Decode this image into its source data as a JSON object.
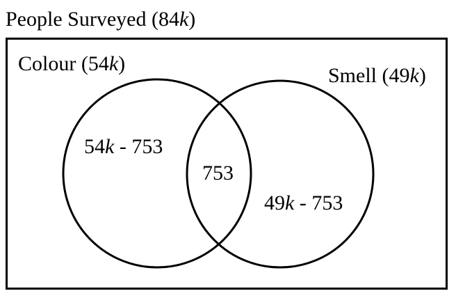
{
  "title": {
    "prefix": "People Surveyed (84",
    "var": "k",
    "suffix": ")"
  },
  "sets": {
    "a": {
      "prefix": "Colour (54",
      "var": "k",
      "suffix": ")"
    },
    "b": {
      "prefix": "Smell (49",
      "var": "k",
      "suffix": ")"
    }
  },
  "regions": {
    "only_a": {
      "prefix": "54",
      "var": "k",
      "suffix": " - 753"
    },
    "both": "753",
    "only_b": {
      "prefix": "49",
      "var": "k",
      "suffix": " - 753"
    }
  },
  "colors": {
    "stroke": "#000000",
    "background": "#ffffff"
  }
}
